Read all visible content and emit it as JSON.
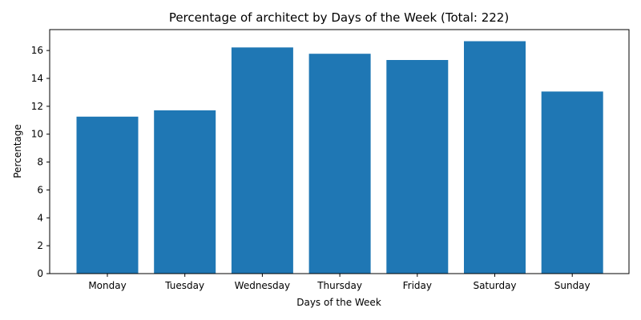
{
  "colors": {
    "bar": "#1f77b4",
    "axis": "#000000",
    "background": "#ffffff"
  },
  "chart_data": {
    "type": "bar",
    "title": "Percentage of architect by Days of the Week (Total: 222)",
    "xlabel": "Days of the Week",
    "ylabel": "Percentage",
    "categories": [
      "Monday",
      "Tuesday",
      "Wednesday",
      "Thursday",
      "Friday",
      "Saturday",
      "Sunday"
    ],
    "values": [
      11.26,
      11.71,
      16.22,
      15.77,
      15.32,
      16.67,
      13.06
    ],
    "ylim": [
      0,
      17.5
    ],
    "yticks": [
      0,
      2,
      4,
      6,
      8,
      10,
      12,
      14,
      16
    ],
    "grid": false,
    "legend": "none"
  }
}
